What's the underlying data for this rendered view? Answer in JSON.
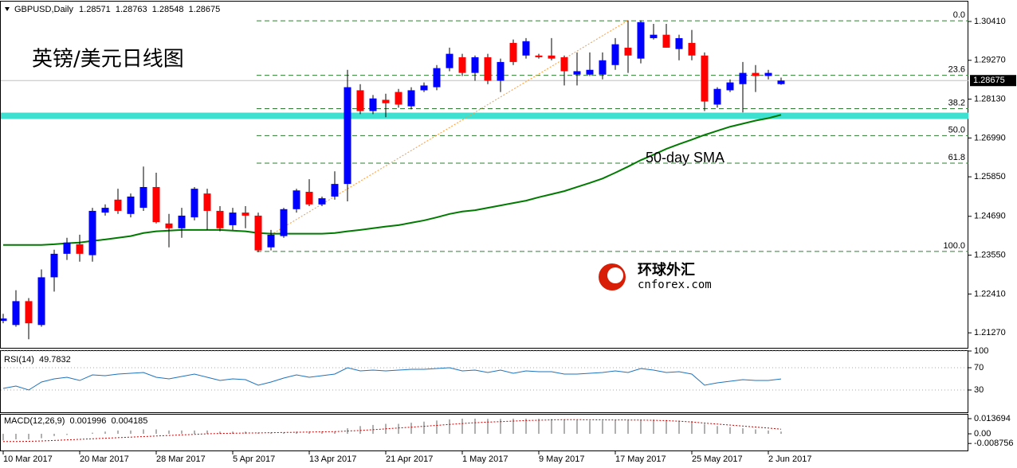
{
  "chart_data": [
    {
      "type": "candlestick",
      "title": "英镑/美元日线图",
      "symbol": "GBPUSD,Daily",
      "categories": [
        "10 Mar 2017",
        null,
        null,
        null,
        null,
        null,
        "20 Mar 2017",
        null,
        null,
        null,
        null,
        null,
        "28 Mar 2017",
        null,
        null,
        null,
        null,
        null,
        "5 Apr 2017",
        null,
        null,
        null,
        null,
        null,
        "13 Apr 2017",
        null,
        null,
        null,
        null,
        null,
        "21 Apr 2017",
        null,
        null,
        null,
        null,
        null,
        "1 May 2017",
        null,
        null,
        null,
        null,
        null,
        "9 May 2017",
        null,
        null,
        null,
        null,
        null,
        "17 May 2017",
        null,
        null,
        null,
        null,
        null,
        "25 May 2017",
        null,
        null,
        null,
        null,
        null,
        "2 Jun 2017",
        null
      ],
      "open": [
        1.2162,
        1.215,
        1.222,
        1.215,
        1.229,
        1.2359,
        1.2387,
        1.2355,
        1.248,
        1.2518,
        1.2476,
        1.2494,
        1.2555,
        1.2448,
        1.2434,
        1.2466,
        1.2536,
        1.2485,
        1.2443,
        1.248,
        1.2471,
        1.2378,
        1.2411,
        1.249,
        1.2541,
        1.2504,
        1.2527,
        1.2564,
        1.2839,
        1.2778,
        1.2811,
        1.2834,
        1.2792,
        1.2839,
        1.2848,
        1.2904,
        1.2936,
        1.289,
        1.2936,
        1.2867,
        1.2978,
        1.2941,
        1.2941,
        1.2941,
        1.2936,
        1.2885,
        1.2885,
        1.2885,
        1.2913,
        1.2964,
        1.2932,
        1.2992,
        1.3002,
        1.296,
        1.2978,
        1.2941,
        1.2797,
        1.2839,
        1.2857,
        1.289,
        1.2881,
        1.28571
      ],
      "high": [
        1.2183,
        1.2252,
        1.2229,
        1.2313,
        1.2371,
        1.2406,
        1.2415,
        1.2494,
        1.2504,
        1.255,
        1.2536,
        1.2615,
        1.2597,
        1.2476,
        1.2494,
        1.2555,
        1.255,
        1.2499,
        1.2494,
        1.2499,
        1.248,
        1.2429,
        1.2494,
        1.255,
        1.2578,
        1.2527,
        1.2601,
        1.2899,
        1.2857,
        1.2825,
        1.2829,
        1.2843,
        1.2848,
        1.2862,
        1.2913,
        1.2964,
        1.2946,
        1.2941,
        1.2946,
        1.2932,
        1.2988,
        1.2992,
        1.2946,
        1.2992,
        1.2941,
        1.295,
        1.295,
        1.295,
        1.2992,
        1.3044,
        1.3044,
        1.3034,
        1.3034,
        1.3002,
        1.3016,
        1.295,
        1.2848,
        1.2871,
        1.2922,
        1.2913,
        1.2899,
        1.28763
      ],
      "low": [
        1.2155,
        1.2145,
        1.2108,
        1.2145,
        1.2248,
        1.2341,
        1.2336,
        1.2336,
        1.2471,
        1.2476,
        1.2466,
        1.2485,
        1.2448,
        1.2378,
        1.2406,
        1.2457,
        1.2429,
        1.2425,
        1.2429,
        1.2434,
        1.2364,
        1.2369,
        1.2406,
        1.248,
        1.2499,
        1.2499,
        1.2518,
        1.2513,
        1.2769,
        1.2769,
        1.276,
        1.2788,
        1.2783,
        1.2834,
        1.2839,
        1.2895,
        1.2881,
        1.2867,
        1.2857,
        1.2834,
        1.2913,
        1.2932,
        1.2932,
        1.2927,
        1.2853,
        1.2853,
        1.2881,
        1.2871,
        1.2899,
        1.289,
        1.2918,
        1.2988,
        1.2964,
        1.2927,
        1.2927,
        1.2778,
        1.2788,
        1.2834,
        1.2774,
        1.2834,
        1.2871,
        1.28548
      ],
      "close": [
        1.2169,
        1.222,
        1.2155,
        1.229,
        1.2359,
        1.2392,
        1.2359,
        1.2485,
        1.2494,
        1.2485,
        1.2527,
        1.2555,
        1.2452,
        1.2434,
        1.2471,
        1.255,
        1.2485,
        1.2434,
        1.248,
        1.2471,
        1.2369,
        1.2415,
        1.249,
        1.2545,
        1.2504,
        1.2522,
        1.2564,
        1.2848,
        1.2778,
        1.2815,
        1.2801,
        1.2797,
        1.2839,
        1.2853,
        1.2904,
        1.2946,
        1.289,
        1.2936,
        1.2867,
        1.2922,
        1.2922,
        1.2983,
        1.2936,
        1.2932,
        1.2895,
        1.2895,
        1.2899,
        1.2927,
        1.2974,
        1.2941,
        1.3039,
        1.3002,
        1.2964,
        1.2992,
        1.2941,
        1.2806,
        1.2843,
        1.2862,
        1.289,
        1.2881,
        1.289,
        1.28675
      ],
      "up_color": "#0000ff",
      "down_color": "#ff0000",
      "series": [
        {
          "name": "50-day SMA",
          "color": "#007a00",
          "values": [
            1.2385,
            1.2385,
            1.2385,
            1.2385,
            1.2387,
            1.239,
            1.2392,
            1.2397,
            1.2401,
            1.2406,
            1.2411,
            1.242,
            1.2425,
            1.2427,
            1.2429,
            1.2429,
            1.2429,
            1.2429,
            1.2427,
            1.2425,
            1.242,
            1.2418,
            1.2418,
            1.2418,
            1.2418,
            1.2418,
            1.242,
            1.2425,
            1.2429,
            1.2434,
            1.2439,
            1.2443,
            1.245,
            1.2457,
            1.2466,
            1.2476,
            1.2483,
            1.2487,
            1.2494,
            1.2501,
            1.2508,
            1.2515,
            1.2525,
            1.2534,
            1.2543,
            1.2555,
            1.2567,
            1.258,
            1.2597,
            1.2615,
            1.2634,
            1.265,
            1.2667,
            1.2681,
            1.2694,
            1.2708,
            1.272,
            1.2732,
            1.2741,
            1.275,
            1.2757,
            1.2767
          ]
        }
      ],
      "fib": {
        "color": "#2e7d32",
        "levels": [
          {
            "value": 1.3043,
            "label": "0.0"
          },
          {
            "value": 1.2883,
            "label": "23.6"
          },
          {
            "value": 1.2785,
            "label": "38.2"
          },
          {
            "value": 1.2706,
            "label": "50.0"
          },
          {
            "value": 1.2625,
            "label": "61.8"
          },
          {
            "value": 1.2366,
            "label": "100.0"
          }
        ]
      },
      "hline": {
        "value": 1.2764,
        "color": "#40e0d0"
      },
      "trendline": {
        "start": [
          21,
          1.2415
        ],
        "end": [
          49,
          1.3044
        ],
        "color": "#ff9933"
      },
      "ylim": [
        1.2083,
        1.3104
      ],
      "yticks": [
        {
          "value": 1.3041,
          "label": "1.30410"
        },
        {
          "value": 1.2927,
          "label": "1.29270"
        },
        {
          "value": 1.2813,
          "label": "1.28130"
        },
        {
          "value": 1.2699,
          "label": "1.26990"
        },
        {
          "value": 1.2585,
          "label": "1.25850"
        },
        {
          "value": 1.2469,
          "label": "1.24690"
        },
        {
          "value": 1.2355,
          "label": "1.23550"
        },
        {
          "value": 1.2241,
          "label": "1.22410"
        },
        {
          "value": 1.2127,
          "label": "1.21270"
        }
      ]
    },
    {
      "type": "line",
      "title": "RSI(14)",
      "color": "#1e73be",
      "values": [
        32.9,
        37.1,
        30.0,
        44.3,
        50.0,
        52.9,
        47.1,
        57.1,
        55.7,
        58.6,
        60.0,
        61.4,
        52.9,
        50.0,
        54.3,
        58.6,
        52.9,
        47.1,
        50.0,
        48.6,
        38.6,
        44.3,
        51.4,
        57.1,
        52.9,
        55.7,
        58.6,
        70.0,
        64.3,
        65.7,
        64.3,
        65.7,
        67.1,
        67.1,
        68.6,
        70.0,
        64.3,
        65.7,
        61.4,
        65.7,
        60.0,
        64.3,
        62.9,
        62.9,
        58.6,
        58.6,
        60.0,
        61.4,
        64.3,
        61.4,
        68.6,
        65.7,
        61.4,
        62.9,
        58.6,
        38.6,
        42.9,
        45.7,
        48.6,
        47.1,
        47.1,
        49.7832
      ],
      "ylim": [
        -10,
        100
      ],
      "yticks": [
        100,
        70,
        30
      ]
    },
    {
      "type": "macd",
      "title": "MACD(12,26,9)",
      "hist_color": "#b0b0b0",
      "signal_color": "#cc0000",
      "macd": [
        -0.006,
        -0.005,
        -0.005,
        -0.004,
        -0.002,
        -0.001,
        0,
        0.001,
        0.002,
        0.003,
        0.003,
        0.004,
        0.004,
        0.003,
        0.003,
        0.003,
        0.003,
        0.002,
        0.002,
        0.002,
        0.001,
        0.001,
        0.001,
        0.002,
        0.002,
        0.002,
        0.002,
        0.005,
        0.007,
        0.008,
        0.009,
        0.009,
        0.01,
        0.011,
        0.012,
        0.013,
        0.0137,
        0.0137,
        0.0135,
        0.0135,
        0.0137,
        0.0137,
        0.0136,
        0.0134,
        0.013,
        0.0125,
        0.012,
        0.012,
        0.0125,
        0.0125,
        0.013,
        0.013,
        0.0125,
        0.012,
        0.0115,
        0.009,
        0.007,
        0.006,
        0.005,
        0.004,
        0.003,
        0.001996
      ],
      "signal": [
        -0.007,
        -0.007,
        -0.0068,
        -0.0065,
        -0.006,
        -0.0055,
        -0.005,
        -0.0045,
        -0.004,
        -0.0035,
        -0.003,
        -0.0025,
        -0.002,
        -0.0015,
        -0.001,
        -0.0005,
        0,
        0.0003,
        0.0005,
        0.0007,
        0.0008,
        0.001,
        0.0012,
        0.0014,
        0.0016,
        0.0018,
        0.002,
        0.0025,
        0.003,
        0.0037,
        0.0045,
        0.0053,
        0.006,
        0.0068,
        0.0076,
        0.0085,
        0.0093,
        0.01,
        0.0106,
        0.011,
        0.0115,
        0.012,
        0.0123,
        0.0126,
        0.0128,
        0.0128,
        0.0127,
        0.0126,
        0.0125,
        0.0125,
        0.0124,
        0.0122,
        0.0119,
        0.0114,
        0.0107,
        0.0097,
        0.0088,
        0.0079,
        0.007,
        0.0061,
        0.0052,
        0.004185
      ],
      "ylim": [
        -0.0151,
        0.0173
      ],
      "yticks": [
        0.013694,
        {
          "value": 0,
          "label": "0.00"
        },
        -0.008756
      ]
    }
  ],
  "watermark": {
    "cn": "环球外汇",
    "en": "cnforex.com"
  }
}
